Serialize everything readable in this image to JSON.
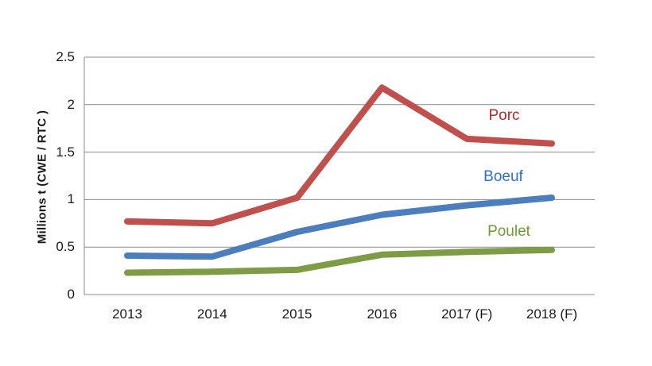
{
  "chart_data": {
    "type": "line",
    "title": "",
    "xlabel": "",
    "ylabel": "Millions t (CWE / RTC )",
    "ylim": [
      0,
      2.5
    ],
    "yticks": [
      0,
      0.5,
      1,
      1.5,
      2,
      2.5
    ],
    "ytick_labels": [
      "0",
      "0.5",
      "1",
      "1.5",
      "2",
      "2.5"
    ],
    "grid": true,
    "legend_position": "inline-labels-right-of-lines",
    "categories": [
      "2013",
      "2014",
      "2015",
      "2016",
      "2017 (F)",
      "2018 (F)"
    ],
    "series": [
      {
        "name": "Porc",
        "color": "#C0504D",
        "label_color": "#B42B2B",
        "values": [
          0.77,
          0.75,
          1.02,
          2.18,
          1.64,
          1.59
        ]
      },
      {
        "name": "Boeuf",
        "color": "#4C7EBD",
        "label_color": "#2F6FC6",
        "values": [
          0.41,
          0.4,
          0.66,
          0.84,
          0.94,
          1.02
        ]
      },
      {
        "name": "Poulet",
        "color": "#7E9B45",
        "label_color": "#6E9D31",
        "values": [
          0.23,
          0.24,
          0.26,
          0.42,
          0.45,
          0.47
        ]
      }
    ]
  },
  "colors": {
    "background": "#FFFFFF",
    "gridline": "#8C8C8C",
    "axis_line": "#8C8C8C",
    "axis_text": "#1A1A1A"
  }
}
